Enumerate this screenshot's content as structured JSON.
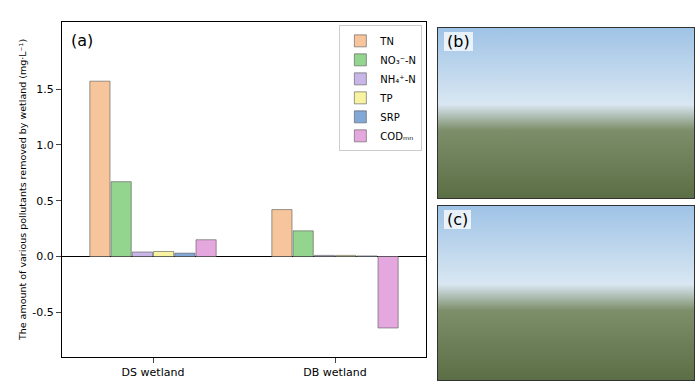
{
  "chart_data": {
    "type": "bar",
    "panel_label": "(a)",
    "ylabel": "The amount of various pollutants removed by wetland (mg·L⁻¹)",
    "categories": [
      "DS wetland",
      "DB wetland"
    ],
    "series": [
      {
        "name": "TN",
        "color": "#f7c59b",
        "values": [
          1.57,
          0.42
        ]
      },
      {
        "name": "NO₃⁻-N",
        "color": "#93d48e",
        "values": [
          0.67,
          0.23
        ]
      },
      {
        "name": "NH₄⁺-N",
        "color": "#c9b6e8",
        "values": [
          0.04,
          0.01
        ]
      },
      {
        "name": "TP",
        "color": "#f7f3a1",
        "values": [
          0.045,
          0.01
        ]
      },
      {
        "name": "SRP",
        "color": "#82a8d8",
        "values": [
          0.03,
          0.005
        ]
      },
      {
        "name": "CODₘₙ",
        "color": "#e5a8de",
        "values": [
          0.15,
          -0.64
        ]
      }
    ],
    "ylim": [
      -0.9,
      2.1
    ],
    "yticks": [
      {
        "value": -0.5,
        "label": "-0.5"
      },
      {
        "value": 0,
        "label": "0.0"
      },
      {
        "value": 0.5,
        "label": "0.5"
      },
      {
        "value": 1,
        "label": "1.0"
      },
      {
        "value": 1.5,
        "label": "1.5"
      }
    ],
    "legend": "upper right",
    "grid": false
  },
  "photo_panels": [
    "(b)",
    "(c)"
  ]
}
